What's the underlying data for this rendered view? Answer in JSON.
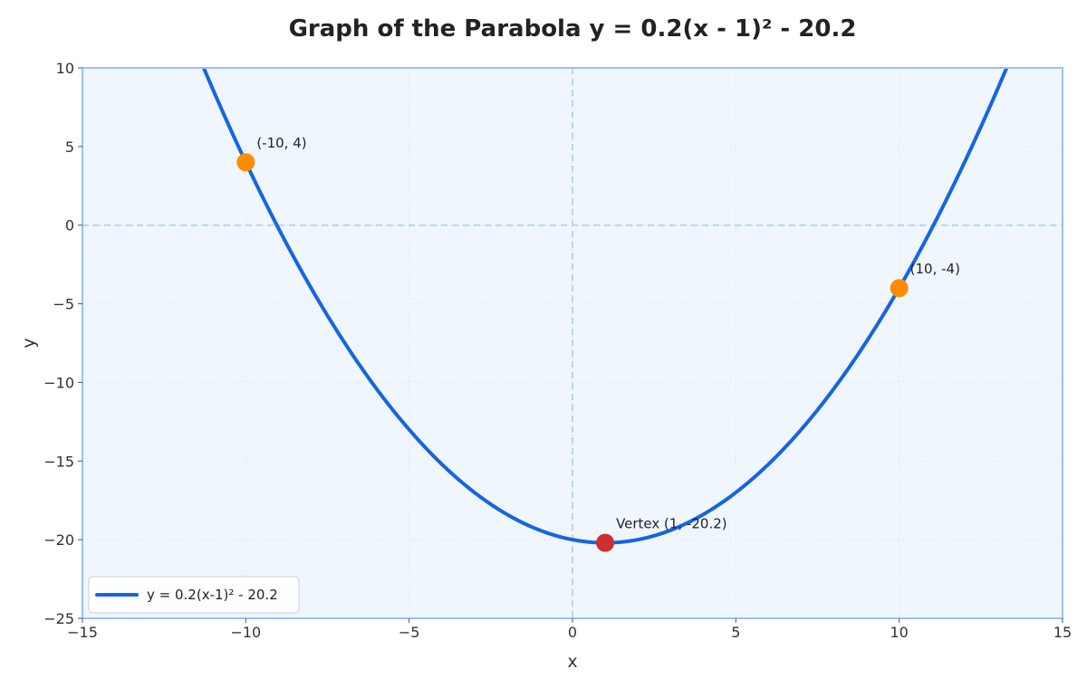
{
  "chart_data": {
    "type": "line",
    "title": "Graph of the Parabola y = 0.2(x - 1)² - 20.2",
    "xlabel": "x",
    "ylabel": "y",
    "xlim": [
      -15,
      15
    ],
    "ylim": [
      -25,
      10
    ],
    "xticks": [
      -15,
      -10,
      -5,
      0,
      5,
      10,
      15
    ],
    "yticks": [
      -25,
      -20,
      -15,
      -10,
      -5,
      0,
      5,
      10
    ],
    "xtick_labels": [
      "−15",
      "−10",
      "−5",
      "0",
      "5",
      "10",
      "15"
    ],
    "ytick_labels": [
      "−25",
      "−20",
      "−15",
      "−10",
      "−5",
      "0",
      "5",
      "10"
    ],
    "grid": true,
    "series": [
      {
        "name": "y = 0.2(x-1)² - 20.2",
        "equation": {
          "a": 0.2,
          "h": 1,
          "k": -20.2
        },
        "x_range": [
          -15,
          15
        ],
        "color": "#1565e0"
      }
    ],
    "points": [
      {
        "x": -10,
        "y": 4,
        "label": "(-10, 4)",
        "color": "#ff8c00"
      },
      {
        "x": 10,
        "y": -4,
        "label": "(10, -4)",
        "color": "#ff8c00"
      },
      {
        "x": 1,
        "y": -20.2,
        "label": "Vertex (1, -20.2)",
        "color": "#cc2f2f"
      }
    ],
    "legend_position": "lower-left",
    "colors": {
      "plot_background": "#f0f6fe",
      "frame": "#98c1f5",
      "reference_lines": "#b9d3ef",
      "grid": "#dde8f5"
    }
  }
}
